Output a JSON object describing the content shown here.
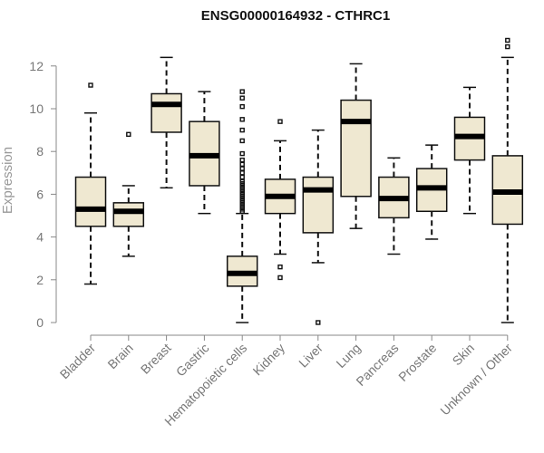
{
  "chart_data": {
    "type": "boxplot",
    "title": "ENSG00000164932 - CTHRC1",
    "ylabel": "Expression",
    "xlabel": "",
    "ylim": [
      0,
      12.6
    ],
    "yticks": [
      0,
      2,
      4,
      6,
      8,
      10,
      12
    ],
    "box_color": "#efe8d1",
    "grid": false,
    "categories": [
      "Bladder",
      "Brain",
      "Breast",
      "Gastric",
      "Hematopoietic cells",
      "Kidney",
      "Liver",
      "Lung",
      "Pancreas",
      "Prostate",
      "Skin",
      "Unknown / Other"
    ],
    "series": [
      {
        "category": "Bladder",
        "whisker_low": 1.8,
        "q1": 4.5,
        "median": 5.3,
        "q3": 6.8,
        "whisker_high": 9.8,
        "outliers": [
          11.1
        ]
      },
      {
        "category": "Brain",
        "whisker_low": 3.1,
        "q1": 4.5,
        "median": 5.2,
        "q3": 5.6,
        "whisker_high": 6.4,
        "outliers": [
          8.8
        ]
      },
      {
        "category": "Breast",
        "whisker_low": 6.3,
        "q1": 8.9,
        "median": 10.2,
        "q3": 10.7,
        "whisker_high": 12.4,
        "outliers": []
      },
      {
        "category": "Gastric",
        "whisker_low": 5.1,
        "q1": 6.4,
        "median": 7.8,
        "q3": 9.4,
        "whisker_high": 10.8,
        "outliers": []
      },
      {
        "category": "Hematopoietic cells",
        "whisker_low": 0.0,
        "q1": 1.7,
        "median": 2.3,
        "q3": 3.1,
        "whisker_high": 5.1,
        "outliers": [
          5.2,
          5.3,
          5.4,
          5.5,
          5.6,
          5.7,
          5.8,
          5.9,
          6.0,
          6.1,
          6.2,
          6.3,
          6.4,
          6.5,
          6.6,
          6.8,
          7.0,
          7.2,
          7.4,
          7.6,
          7.9,
          8.5,
          9.0,
          9.5,
          10.1,
          10.5,
          10.8
        ]
      },
      {
        "category": "Kidney",
        "whisker_low": 3.2,
        "q1": 5.1,
        "median": 5.9,
        "q3": 6.7,
        "whisker_high": 8.5,
        "outliers": [
          2.1,
          2.6,
          9.4
        ]
      },
      {
        "category": "Liver",
        "whisker_low": 2.8,
        "q1": 4.2,
        "median": 6.2,
        "q3": 6.8,
        "whisker_high": 9.0,
        "outliers": [
          0.0
        ]
      },
      {
        "category": "Lung",
        "whisker_low": 4.4,
        "q1": 5.9,
        "median": 9.4,
        "q3": 10.4,
        "whisker_high": 12.1,
        "outliers": []
      },
      {
        "category": "Pancreas",
        "whisker_low": 3.2,
        "q1": 4.9,
        "median": 5.8,
        "q3": 6.8,
        "whisker_high": 7.7,
        "outliers": []
      },
      {
        "category": "Prostate",
        "whisker_low": 3.9,
        "q1": 5.2,
        "median": 6.3,
        "q3": 7.2,
        "whisker_high": 8.3,
        "outliers": []
      },
      {
        "category": "Skin",
        "whisker_low": 5.1,
        "q1": 7.6,
        "median": 8.7,
        "q3": 9.6,
        "whisker_high": 11.0,
        "outliers": []
      },
      {
        "category": "Unknown / Other",
        "whisker_low": 0.0,
        "q1": 4.6,
        "median": 6.1,
        "q3": 7.8,
        "whisker_high": 12.4,
        "outliers": [
          12.9,
          13.2
        ]
      }
    ]
  }
}
